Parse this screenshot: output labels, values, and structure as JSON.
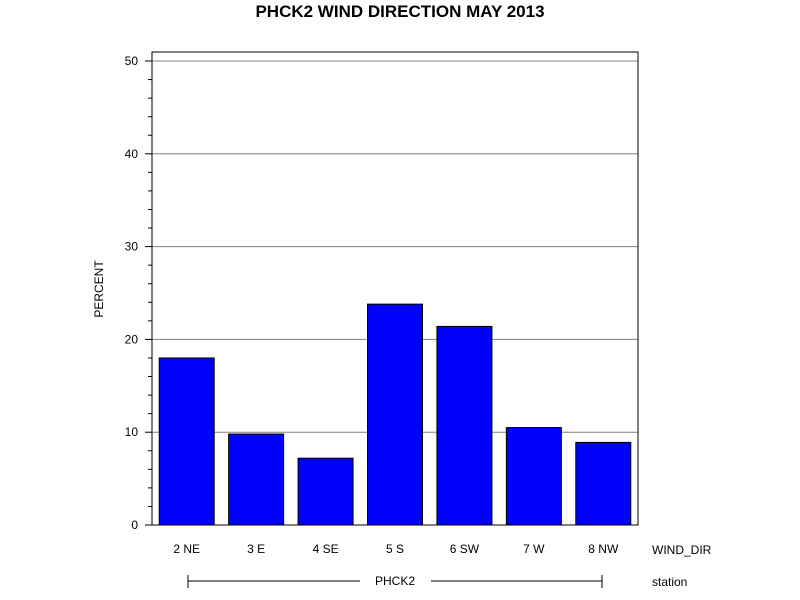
{
  "chart_data": {
    "type": "bar",
    "title": "PHCK2 WIND DIRECTION MAY 2013",
    "ylabel": "PERCENT",
    "xlabel": "WIND_DIR",
    "group_label": "station",
    "group_value": "PHCK2",
    "categories": [
      "2 NE",
      "3 E",
      "4 SE",
      "5 S",
      "6 SW",
      "7 W",
      "8 NW"
    ],
    "values": [
      18.0,
      9.8,
      7.2,
      23.8,
      21.4,
      10.5,
      8.9
    ],
    "ylim": [
      0,
      50
    ],
    "yticks": [
      "0",
      "10",
      "20",
      "30",
      "40",
      "50"
    ],
    "grid": true,
    "colors": {
      "bar": "#0000ff",
      "bar_edge": "#000000",
      "grid": "#808080"
    }
  }
}
